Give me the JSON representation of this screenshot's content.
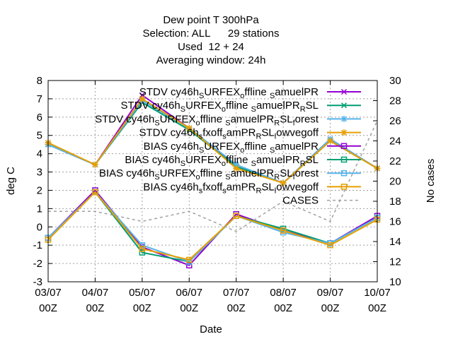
{
  "chart_data": {
    "type": "line",
    "title_lines": [
      "Dew point T 300hPa",
      "Selection: ALL      29 stations",
      "Used  12 + 24",
      "Averaging window: 24h"
    ],
    "xlabel": "Date",
    "ylabel": "deg C",
    "y2label": "No cases",
    "x_ticks": [
      {
        "line1": "03/07",
        "line2": "00Z"
      },
      {
        "line1": "04/07",
        "line2": "00Z"
      },
      {
        "line1": "05/07",
        "line2": "00Z"
      },
      {
        "line1": "06/07",
        "line2": "00Z"
      },
      {
        "line1": "07/07",
        "line2": "00Z"
      },
      {
        "line1": "08/07",
        "line2": "00Z"
      },
      {
        "line1": "09/07",
        "line2": "00Z"
      },
      {
        "line1": "10/07",
        "line2": "00Z"
      }
    ],
    "ylim": [
      -3,
      8
    ],
    "y_ticks": [
      "-3",
      "-2",
      "-1",
      "0",
      "1",
      "2",
      "3",
      "4",
      "5",
      "6",
      "7",
      "8"
    ],
    "y2lim": [
      10,
      30
    ],
    "y2_ticks": [
      "10",
      "12",
      "14",
      "16",
      "18",
      "20",
      "22",
      "24",
      "26",
      "28",
      "30"
    ],
    "grid": true,
    "legend_position": "top-right",
    "series": [
      {
        "label_parts": [
          {
            "t": "STDV cy46h"
          },
          {
            "t": "S",
            "sub": true
          },
          {
            "t": "URFEX"
          },
          {
            "t": "o",
            "sub": true
          },
          {
            "t": "ffline "
          },
          {
            "t": "S",
            "sub": true
          },
          {
            "t": "amuelPR"
          }
        ],
        "color": "#9400d3",
        "marker": "x",
        "axis": "y1",
        "values": [
          4.5,
          3.4,
          7.2,
          5.4,
          3.3,
          2.4,
          4.8,
          3.2
        ]
      },
      {
        "label_parts": [
          {
            "t": "STDV cy46h"
          },
          {
            "t": "S",
            "sub": true
          },
          {
            "t": "URFEX"
          },
          {
            "t": "o",
            "sub": true
          },
          {
            "t": "ffline "
          },
          {
            "t": "S",
            "sub": true
          },
          {
            "t": "amuelPR"
          },
          {
            "t": "R",
            "sub": true
          },
          {
            "t": "SL"
          }
        ],
        "color": "#009e73",
        "marker": "x",
        "axis": "y1",
        "values": [
          4.5,
          3.4,
          6.8,
          5.3,
          3.3,
          2.4,
          4.7,
          3.2
        ]
      },
      {
        "label_parts": [
          {
            "t": "STDV cy46h"
          },
          {
            "t": "S",
            "sub": true
          },
          {
            "t": "URFEX"
          },
          {
            "t": "o",
            "sub": true
          },
          {
            "t": "ffline "
          },
          {
            "t": "S",
            "sub": true
          },
          {
            "t": "amuelPR"
          },
          {
            "t": "R",
            "sub": true
          },
          {
            "t": "SL"
          },
          {
            "t": "f",
            "sub": true
          },
          {
            "t": "orest"
          }
        ],
        "color": "#56b4e9",
        "marker": "*",
        "axis": "y1",
        "values": [
          4.5,
          3.4,
          6.9,
          5.4,
          3.4,
          2.4,
          4.8,
          3.2
        ]
      },
      {
        "label_parts": [
          {
            "t": "STDV cy46h"
          },
          {
            "t": "s",
            "sub": true
          },
          {
            "t": "fxoff"
          },
          {
            "t": "s",
            "sub": true
          },
          {
            "t": "amPR"
          },
          {
            "t": "R",
            "sub": true
          },
          {
            "t": "SL"
          },
          {
            "t": "l",
            "sub": true
          },
          {
            "t": "owvegoff"
          }
        ],
        "color": "#e69f00",
        "marker": "*",
        "axis": "y1",
        "values": [
          4.6,
          3.4,
          7.0,
          5.4,
          3.2,
          2.4,
          4.7,
          3.2
        ]
      },
      {
        "label_parts": [
          {
            "t": "BIAS cy46h"
          },
          {
            "t": "S",
            "sub": true
          },
          {
            "t": "URFEX"
          },
          {
            "t": "o",
            "sub": true
          },
          {
            "t": "ffline "
          },
          {
            "t": "S",
            "sub": true
          },
          {
            "t": "amuelPR"
          }
        ],
        "color": "#9400d3",
        "marker": "square",
        "axis": "y1",
        "values": [
          -0.6,
          2.0,
          -1.1,
          -2.1,
          0.7,
          -0.2,
          -0.9,
          0.6
        ]
      },
      {
        "label_parts": [
          {
            "t": "BIAS cy46h"
          },
          {
            "t": "S",
            "sub": true
          },
          {
            "t": "URFEX"
          },
          {
            "t": "o",
            "sub": true
          },
          {
            "t": "ffline "
          },
          {
            "t": "S",
            "sub": true
          },
          {
            "t": "amuelPR"
          },
          {
            "t": "R",
            "sub": true
          },
          {
            "t": "SL"
          }
        ],
        "color": "#009e73",
        "marker": "square",
        "axis": "y1",
        "values": [
          -0.6,
          1.9,
          -1.4,
          -1.9,
          0.6,
          -0.1,
          -0.9,
          0.5
        ]
      },
      {
        "label_parts": [
          {
            "t": "BIAS cy46h"
          },
          {
            "t": "S",
            "sub": true
          },
          {
            "t": "URFEX"
          },
          {
            "t": "o",
            "sub": true
          },
          {
            "t": "ffline "
          },
          {
            "t": "S",
            "sub": true
          },
          {
            "t": "amuelPR"
          },
          {
            "t": "R",
            "sub": true
          },
          {
            "t": "SL"
          },
          {
            "t": "f",
            "sub": true
          },
          {
            "t": "orest"
          }
        ],
        "color": "#56b4e9",
        "marker": "square",
        "axis": "y1",
        "values": [
          -0.6,
          1.9,
          -1.0,
          -1.9,
          0.6,
          -0.3,
          -0.9,
          0.5
        ]
      },
      {
        "label_parts": [
          {
            "t": "BIAS cy46h"
          },
          {
            "t": "s",
            "sub": true
          },
          {
            "t": "fxoff"
          },
          {
            "t": "s",
            "sub": true
          },
          {
            "t": "amPR"
          },
          {
            "t": "R",
            "sub": true
          },
          {
            "t": "SL"
          },
          {
            "t": "l",
            "sub": true
          },
          {
            "t": "owvegoff"
          }
        ],
        "color": "#e69f00",
        "marker": "square",
        "axis": "y1",
        "values": [
          -0.7,
          1.9,
          -1.2,
          -1.8,
          0.6,
          -0.2,
          -1.0,
          0.4
        ]
      },
      {
        "label_parts": [
          {
            "t": "CASES"
          }
        ],
        "color": "#a0a0a0",
        "marker": "none",
        "dashed": true,
        "axis": "y2",
        "values": [
          17,
          17,
          16,
          17,
          15,
          18,
          16,
          26
        ]
      }
    ]
  }
}
